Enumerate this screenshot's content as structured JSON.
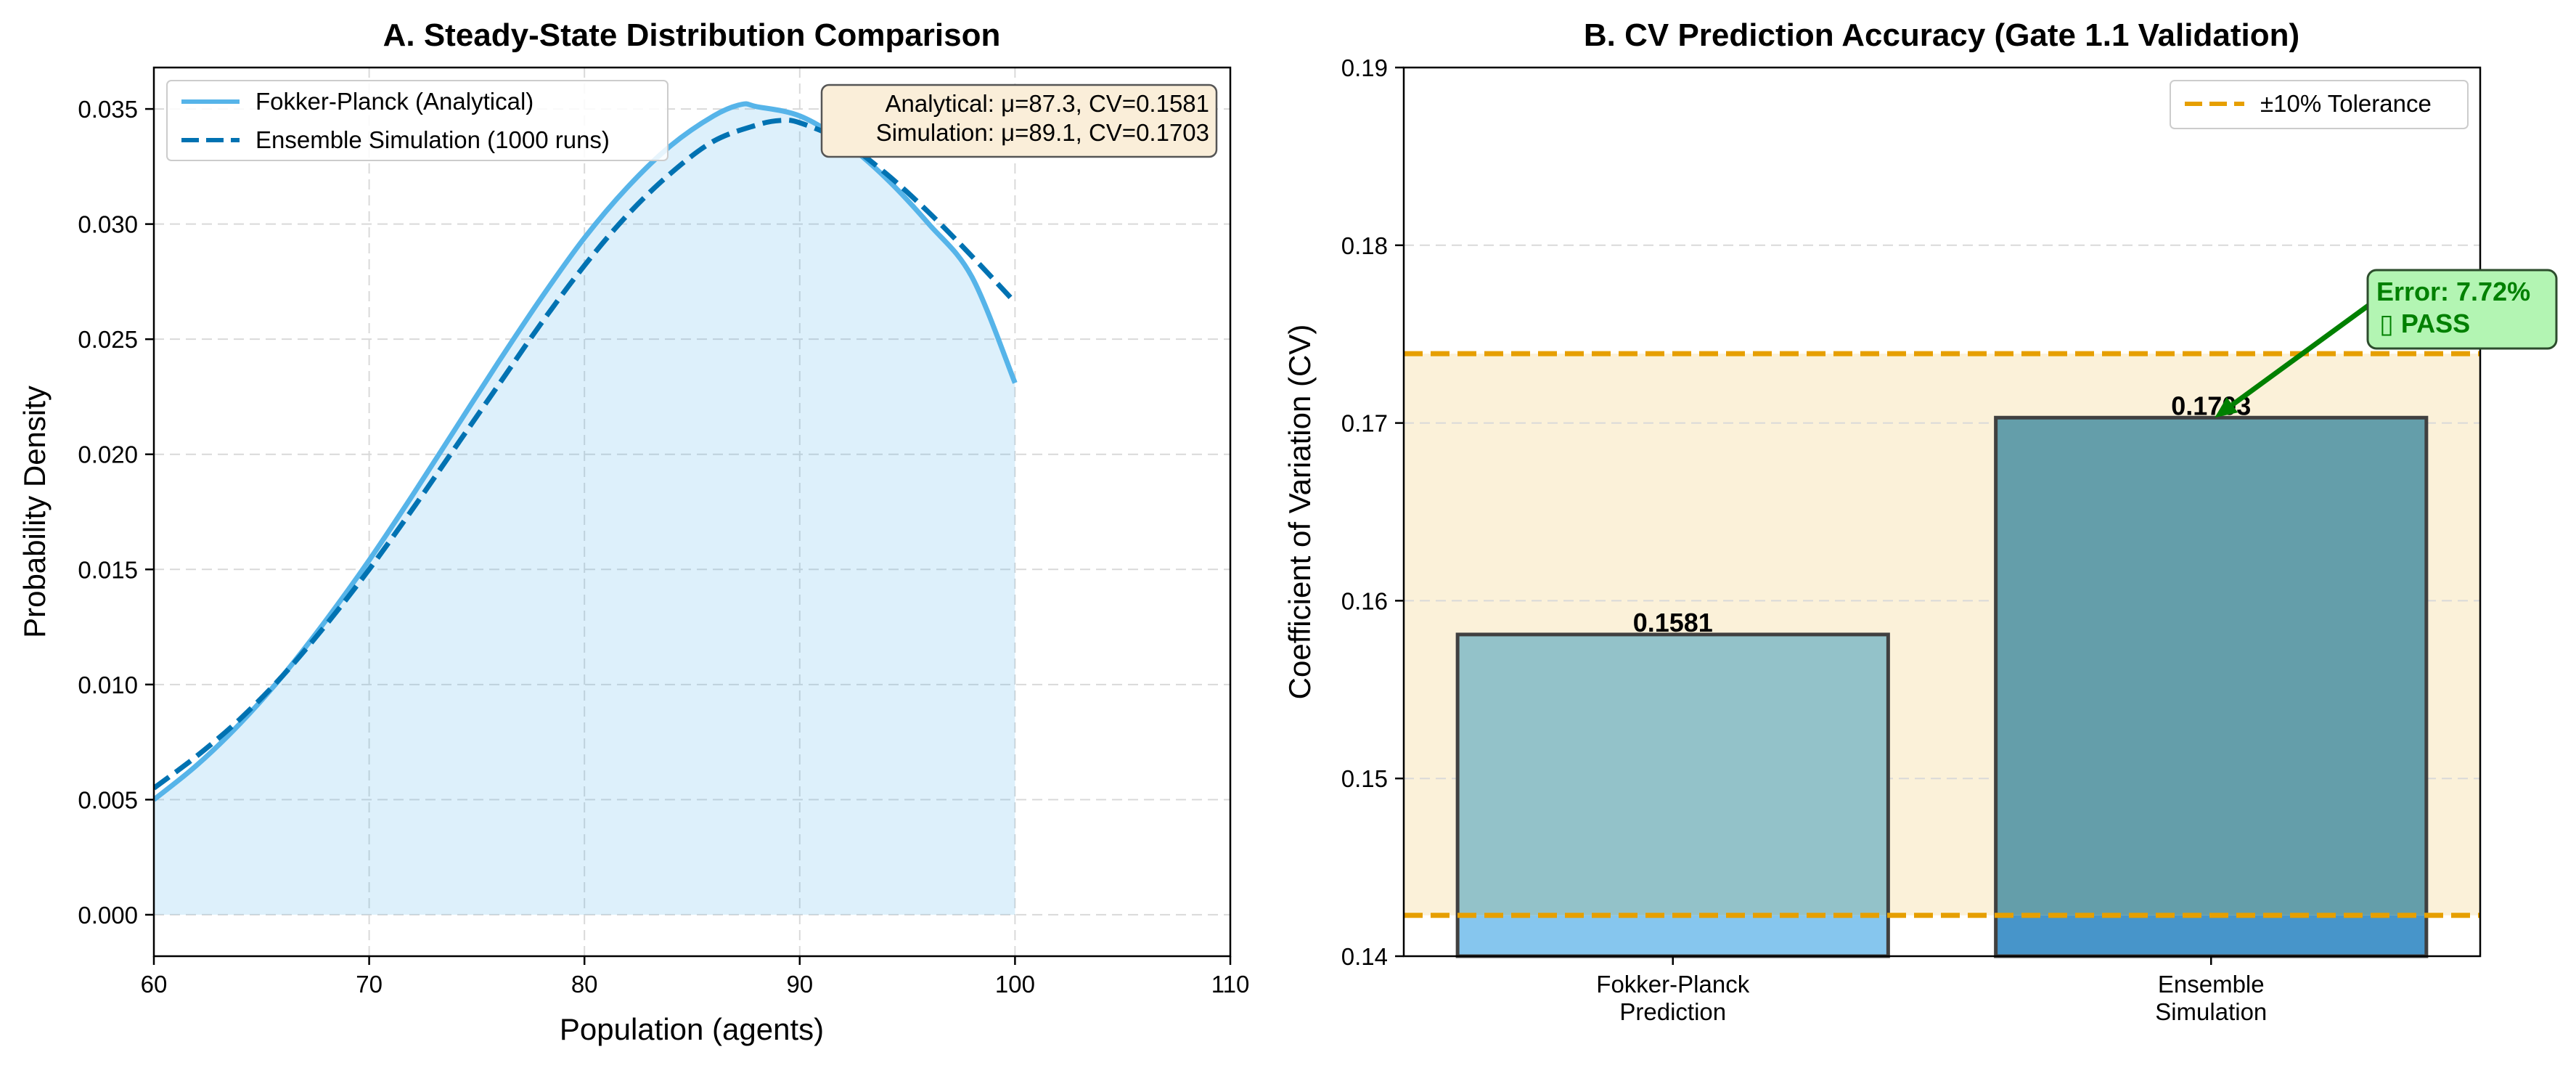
{
  "colors": {
    "analytical": "#56B4E9",
    "simulation": "#0072B2",
    "fill": "#56B4E9",
    "tolerance": "#E69F00",
    "bar1_top": "#93C2C9",
    "bar1_bottom": "#86C6EE",
    "bar2_top": "#649EAA",
    "bar2_bottom": "#4795CA",
    "annotation": "#008000",
    "annotation_bg": "#B3F5B3",
    "info_bg": "#FAEED9"
  },
  "chart_data": [
    {
      "type": "line",
      "title": "A. Steady-State Distribution Comparison",
      "xlabel": "Population (agents)",
      "ylabel": "Probability Density",
      "xlim": [
        60,
        110
      ],
      "ylim": [
        -0.0018,
        0.0368
      ],
      "xticks": [
        "60",
        "70",
        "80",
        "90",
        "100",
        "110"
      ],
      "yticks": [
        "0.000",
        "0.005",
        "0.010",
        "0.015",
        "0.020",
        "0.025",
        "0.030",
        "0.035"
      ],
      "grid": true,
      "legend_position": "top-left",
      "info_box": [
        "Analytical: μ=87.3, CV=0.1581",
        "Simulation: μ=89.1, CV=0.1703"
      ],
      "series": [
        {
          "name": "Fokker-Planck (Analytical)",
          "style": "solid",
          "filled": true,
          "x": [
            60,
            62,
            64,
            66,
            68,
            70,
            72,
            74,
            76,
            78,
            80,
            82,
            84,
            86,
            87.3,
            88,
            90,
            92,
            94,
            96,
            98,
            100
          ],
          "y": [
            0.005,
            0.0065,
            0.0083,
            0.0104,
            0.0128,
            0.0154,
            0.0182,
            0.0211,
            0.024,
            0.0268,
            0.0294,
            0.0316,
            0.0334,
            0.0347,
            0.0352,
            0.0351,
            0.0347,
            0.0336,
            0.032,
            0.03,
            0.0277,
            0.0231
          ]
        },
        {
          "name": "Ensemble Simulation (1000 runs)",
          "style": "dashed",
          "filled": false,
          "x": [
            60,
            62,
            64,
            66,
            68,
            70,
            72,
            74,
            76,
            78,
            80,
            82,
            84,
            86,
            88,
            89.1,
            90,
            92,
            94,
            96,
            98,
            100
          ],
          "y": [
            0.0055,
            0.0069,
            0.0085,
            0.0104,
            0.0126,
            0.015,
            0.0176,
            0.0203,
            0.023,
            0.0257,
            0.0282,
            0.0304,
            0.0322,
            0.0336,
            0.0343,
            0.0345,
            0.0344,
            0.0336,
            0.0322,
            0.0305,
            0.0286,
            0.0266
          ]
        }
      ]
    },
    {
      "type": "bar",
      "title": "B. CV Prediction Accuracy (Gate 1.1 Validation)",
      "xlabel": "",
      "ylabel": "Coefficient of Variation (CV)",
      "ylim": [
        0.14,
        0.19
      ],
      "yticks": [
        "0.14",
        "0.15",
        "0.16",
        "0.17",
        "0.18",
        "0.19"
      ],
      "grid": true,
      "legend_position": "top-right",
      "categories": [
        [
          "Fokker-Planck",
          "Prediction"
        ],
        [
          "Ensemble",
          "Simulation"
        ]
      ],
      "values": [
        0.1581,
        0.1703
      ],
      "value_labels": [
        "0.1581",
        "0.1703"
      ],
      "tolerance": {
        "name": "±10% Tolerance",
        "lower": 0.1423,
        "upper": 0.1739
      },
      "annotation": {
        "lines": [
          "Error: 7.72%",
          "▯ PASS"
        ],
        "points_to": 0.1703
      }
    }
  ]
}
